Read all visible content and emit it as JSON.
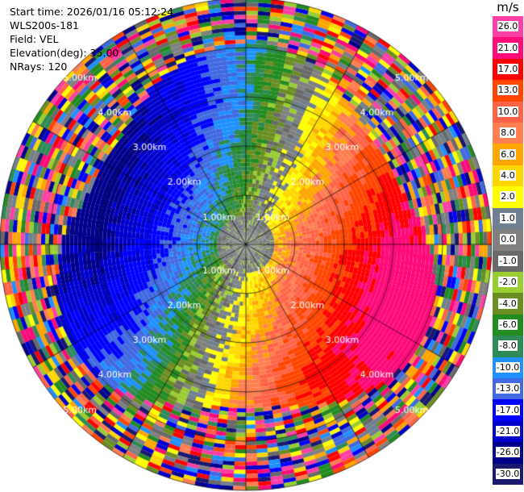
{
  "info": {
    "start_time": "Start time: 2026/01/16 05:12:24",
    "station": "WLS200s-181",
    "field": "Field: VEL",
    "elevation": "Elevation(deg): 35.00",
    "nrays": "NRays: 120"
  },
  "colorbar": {
    "unit": "m/s",
    "levels": [
      {
        "label": "26.0",
        "color": "#ff3ea6"
      },
      {
        "label": "21.0",
        "color": "#ff0a78"
      },
      {
        "label": "17.0",
        "color": "#ff0000"
      },
      {
        "label": "13.0",
        "color": "#ff4500"
      },
      {
        "label": "10.0",
        "color": "#ff6347"
      },
      {
        "label": "8.0",
        "color": "#ff7f50"
      },
      {
        "label": "6.0",
        "color": "#ffa500"
      },
      {
        "label": "4.0",
        "color": "#ffd700"
      },
      {
        "label": "2.0",
        "color": "#ffff00"
      },
      {
        "label": "1.0",
        "color": "#708090"
      },
      {
        "label": "0.0",
        "color": "#808080"
      },
      {
        "label": "-1.0",
        "color": "#696969"
      },
      {
        "label": "-2.0",
        "color": "#9acd32"
      },
      {
        "label": "-4.0",
        "color": "#6b8e23"
      },
      {
        "label": "-6.0",
        "color": "#228b22"
      },
      {
        "label": "-8.0",
        "color": "#2e8b57"
      },
      {
        "label": "-10.0",
        "color": "#1e90ff"
      },
      {
        "label": "-13.0",
        "color": "#4169e1"
      },
      {
        "label": "-17.0",
        "color": "#0000ff"
      },
      {
        "label": "-21.0",
        "color": "#0000cd"
      },
      {
        "label": "-26.0",
        "color": "#00008b"
      },
      {
        "label": "-30.0",
        "color": "#191970"
      }
    ]
  },
  "chart_data": {
    "type": "ppi",
    "field": "VEL",
    "units": "m/s",
    "nrays": 120,
    "elevation_deg": 35.0,
    "range_rings_km": [
      1.0,
      2.0,
      3.0,
      4.0,
      5.0
    ],
    "range_ring_labels": [
      "1.00km",
      "2.00km",
      "3.00km",
      "4.00km",
      "5.00km"
    ],
    "max_range_km": 5.0,
    "spoke_angles_deg": [
      0,
      30,
      60,
      90,
      120,
      150,
      180,
      210,
      240,
      270,
      300,
      330
    ],
    "pattern": "dipole: negative (receding, green/blue) to the west-north-west, positive (approaching, yellow/orange/red) to the east and south-east, near-zero grey near the center; noisy multi-color speckle beyond ~3.5-4 km"
  }
}
